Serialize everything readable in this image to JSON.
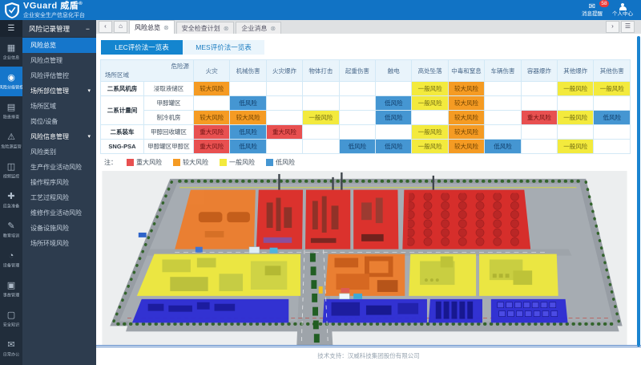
{
  "header": {
    "brand": "VGuard 威盾",
    "brand_reg": "®",
    "subtitle": "企业安全生产信息化平台",
    "messages_label": "消息提醒",
    "messages_badge": "58",
    "messages_glyph": "✉",
    "profile_label": "个人中心"
  },
  "icon_rail": {
    "burger_glyph": "☰",
    "items": [
      {
        "id": "enterprise-info",
        "label": "企业信息",
        "glyph": "▦",
        "icon": "building-icon"
      },
      {
        "id": "risk-grading-control",
        "label": "风险分级管控",
        "glyph": "◉",
        "icon": "shield-icon",
        "active": true
      },
      {
        "id": "hazard-inspection",
        "label": "隐患排查",
        "glyph": "▤",
        "icon": "clipboard-icon"
      },
      {
        "id": "danger-source-monitor",
        "label": "危险源监管",
        "glyph": "⚠",
        "icon": "warning-icon"
      },
      {
        "id": "video-monitor",
        "label": "视频监控",
        "glyph": "◫",
        "icon": "camera-icon"
      },
      {
        "id": "emergency-prep",
        "label": "应急准备",
        "glyph": "✚",
        "icon": "first-aid-icon"
      },
      {
        "id": "education-training",
        "label": "教育培训",
        "glyph": "✎",
        "icon": "book-icon"
      },
      {
        "id": "equipment-mgmt",
        "label": "设备管理",
        "glyph": "◔",
        "icon": "gauge-icon"
      },
      {
        "id": "accident-mgmt",
        "label": "事故管理",
        "glyph": "▣",
        "icon": "briefcase-icon"
      },
      {
        "id": "safety-knowledge",
        "label": "安全知识",
        "glyph": "▢",
        "icon": "document-icon"
      },
      {
        "id": "daily-office",
        "label": "日常办公",
        "glyph": "✉",
        "icon": "office-icon"
      }
    ]
  },
  "sidebar": {
    "group_header": {
      "label": "风险记录管理",
      "collapse_glyph": "−"
    },
    "caret_glyph": "▾",
    "items": [
      {
        "label": "风险总览",
        "type": "item",
        "active": true
      },
      {
        "label": "风险点管理",
        "type": "item"
      },
      {
        "label": "风险评估管控",
        "type": "item"
      },
      {
        "label": "场所部位管理",
        "type": "group"
      },
      {
        "label": "场所区域",
        "type": "item"
      },
      {
        "label": "岗位/设备",
        "type": "item"
      },
      {
        "label": "风险信息管理",
        "type": "group"
      },
      {
        "label": "风险类别",
        "type": "item"
      },
      {
        "label": "生产作业活动风险",
        "type": "item"
      },
      {
        "label": "操作程序风险",
        "type": "item"
      },
      {
        "label": "工艺过程风险",
        "type": "item"
      },
      {
        "label": "维修作业活动风险",
        "type": "item"
      },
      {
        "label": "设备设施风险",
        "type": "item"
      },
      {
        "label": "场所环境风险",
        "type": "item"
      }
    ]
  },
  "window_tabs": {
    "back_glyph": "‹",
    "home_glyph": "⌂",
    "close_glyph": "⊗",
    "scroll_glyph": "›",
    "menu_glyph": "☰",
    "tabs": [
      {
        "label": "风险总览",
        "active": true
      },
      {
        "label": "安全检查计划"
      },
      {
        "label": "企业消息"
      }
    ]
  },
  "content": {
    "view_tabs": [
      {
        "label": "LEC评价法一览表",
        "active": true
      },
      {
        "label": "MES评价法一览表"
      }
    ]
  },
  "risk_table": {
    "corner_top": "危险源",
    "corner_bottom": "场所区域",
    "columns": [
      "火灾",
      "机械伤害",
      "火灾爆炸",
      "物体打击",
      "起重伤害",
      "触电",
      "高处坠落",
      "中毒和窒息",
      "车辆伤害",
      "容器爆炸",
      "其他爆炸",
      "其他伤害"
    ],
    "rows": [
      {
        "area": "二系风机房",
        "area_span": 1,
        "source": "浸取液储区",
        "cells": [
          "较大风险",
          "",
          "",
          "",
          "",
          "",
          "一般风险",
          "较大风险",
          "",
          "",
          "一般风险",
          "一般风险"
        ]
      },
      {
        "area": "二系计量间",
        "area_span": 2,
        "source": "甲醇罐区",
        "cells": [
          "",
          "低风险",
          "",
          "",
          "",
          "低风险",
          "一般风险",
          "较大风险",
          "",
          "",
          "",
          ""
        ]
      },
      {
        "area": null,
        "source": "制冷机房",
        "cells": [
          "较大风险",
          "较大风险",
          "",
          "一般风险",
          "",
          "低风险",
          "",
          "较大风险",
          "",
          "重大风险",
          "一般风险",
          "低风险"
        ]
      },
      {
        "area": "二系装车",
        "area_span": 1,
        "source": "甲醇回收罐区",
        "cells": [
          "重大风险",
          "低风险",
          "重大风险",
          "",
          "",
          "",
          "一般风险",
          "较大风险",
          "",
          "",
          "",
          ""
        ]
      },
      {
        "area": "SNG-PSA",
        "area_span": 1,
        "source": "甲醇罐区甲醇区",
        "cells": [
          "重大风险",
          "低风险",
          "",
          "",
          "低风险",
          "低风险",
          "一般风险",
          "较大风险",
          "低风险",
          "",
          "一般风险",
          ""
        ]
      }
    ],
    "legend": {
      "prefix": "注：",
      "items": [
        {
          "label": "重大风险",
          "color": "#e85050"
        },
        {
          "label": "较大风险",
          "color": "#f59b23"
        },
        {
          "label": "一般风险",
          "color": "#f3ea3d"
        },
        {
          "label": "低风险",
          "color": "#4596d2"
        }
      ]
    }
  },
  "footer": {
    "support_text": "技术支持：汉威科技集团股份有限公司"
  }
}
